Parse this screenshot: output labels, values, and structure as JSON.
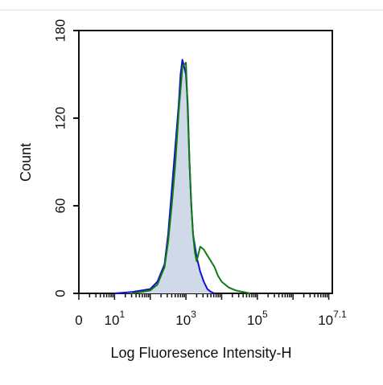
{
  "chart_data": {
    "type": "area",
    "title": "",
    "xlabel": "Log Fluoresence Intensity-H",
    "ylabel": "Count",
    "x_scale": "log",
    "ylim": [
      0,
      180
    ],
    "y_ticks": [
      {
        "value": 0,
        "label": "0"
      },
      {
        "value": 60,
        "label": "60"
      },
      {
        "value": 120,
        "label": "120"
      },
      {
        "value": 180,
        "label": "180"
      }
    ],
    "x_tick_labels": [
      {
        "base": "0",
        "exp": ""
      },
      {
        "base": "10",
        "exp": "1"
      },
      {
        "base": "10",
        "exp": "3"
      },
      {
        "base": "10",
        "exp": "5"
      },
      {
        "base": "10",
        "exp": "7.1"
      }
    ],
    "grid": false,
    "legend": "none",
    "series": [
      {
        "color": "#1010cc",
        "fill": "#cfd9e8",
        "x": [
          1,
          1.5,
          2,
          2.2,
          2.4,
          2.5,
          2.6,
          2.7,
          2.8,
          2.85,
          2.9,
          2.95,
          3.0,
          3.05,
          3.1,
          3.15,
          3.2,
          3.3,
          3.4,
          3.5,
          3.6,
          3.7,
          3.8
        ],
        "y": [
          0,
          1,
          3,
          8,
          20,
          40,
          70,
          100,
          130,
          150,
          160,
          155,
          150,
          130,
          90,
          60,
          40,
          25,
          15,
          8,
          3,
          1,
          0
        ]
      },
      {
        "color": "#127a12",
        "fill": "none",
        "x": [
          1.5,
          2.0,
          2.2,
          2.4,
          2.5,
          2.6,
          2.7,
          2.8,
          2.9,
          3.0,
          3.05,
          3.1,
          3.15,
          3.2,
          3.25,
          3.3,
          3.4,
          3.5,
          3.6,
          3.7,
          3.8,
          3.9,
          4.0,
          4.2,
          4.4,
          4.6,
          4.8
        ],
        "y": [
          0,
          2,
          6,
          18,
          35,
          60,
          88,
          125,
          155,
          158,
          125,
          90,
          60,
          40,
          28,
          22,
          32,
          30,
          26,
          22,
          18,
          12,
          8,
          4,
          2,
          1,
          0
        ]
      }
    ]
  }
}
